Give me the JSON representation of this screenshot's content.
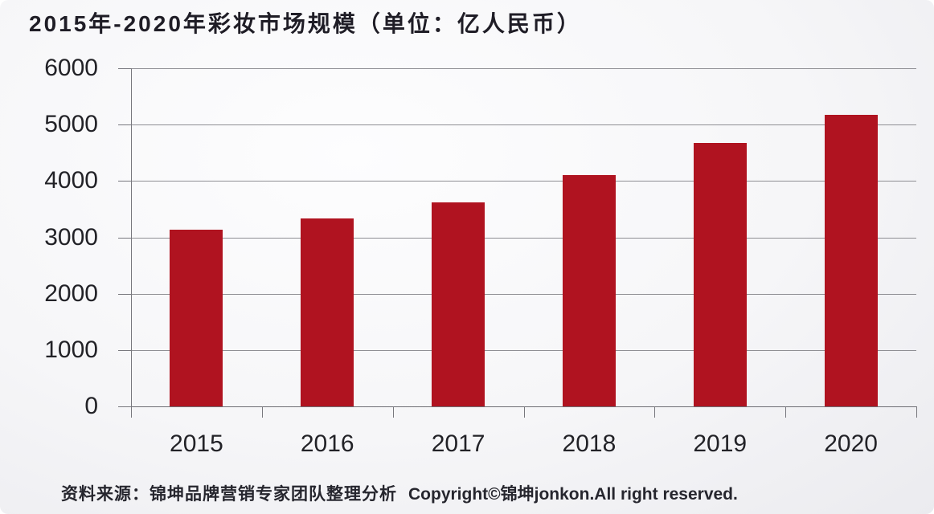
{
  "title": "2015年-2020年彩妆市场规模（单位：亿人民币）",
  "footer": {
    "source": "资料来源：锦坤品牌营销专家团队整理分析",
    "copyright": "Copyright©锦坤jonkon.All right reserved."
  },
  "chart_data": {
    "type": "bar",
    "title": "2015年-2020年彩妆市场规模（单位：亿人民币）",
    "unit": "亿人民币",
    "categories": [
      "2015",
      "2016",
      "2017",
      "2018",
      "2019",
      "2020"
    ],
    "values": [
      3140,
      3340,
      3620,
      4100,
      4670,
      5170
    ],
    "ylim": [
      0,
      6000
    ],
    "yticks": [
      0,
      1000,
      2000,
      3000,
      4000,
      5000,
      6000
    ],
    "grid": true,
    "legend": "none",
    "colors": {
      "bar": "#b01320",
      "gridline": "#8e8e93",
      "axis": "#6e6e74",
      "title_text": "#1f1d26",
      "tick_text": "#222227",
      "footer_text": "#26262e"
    }
  }
}
